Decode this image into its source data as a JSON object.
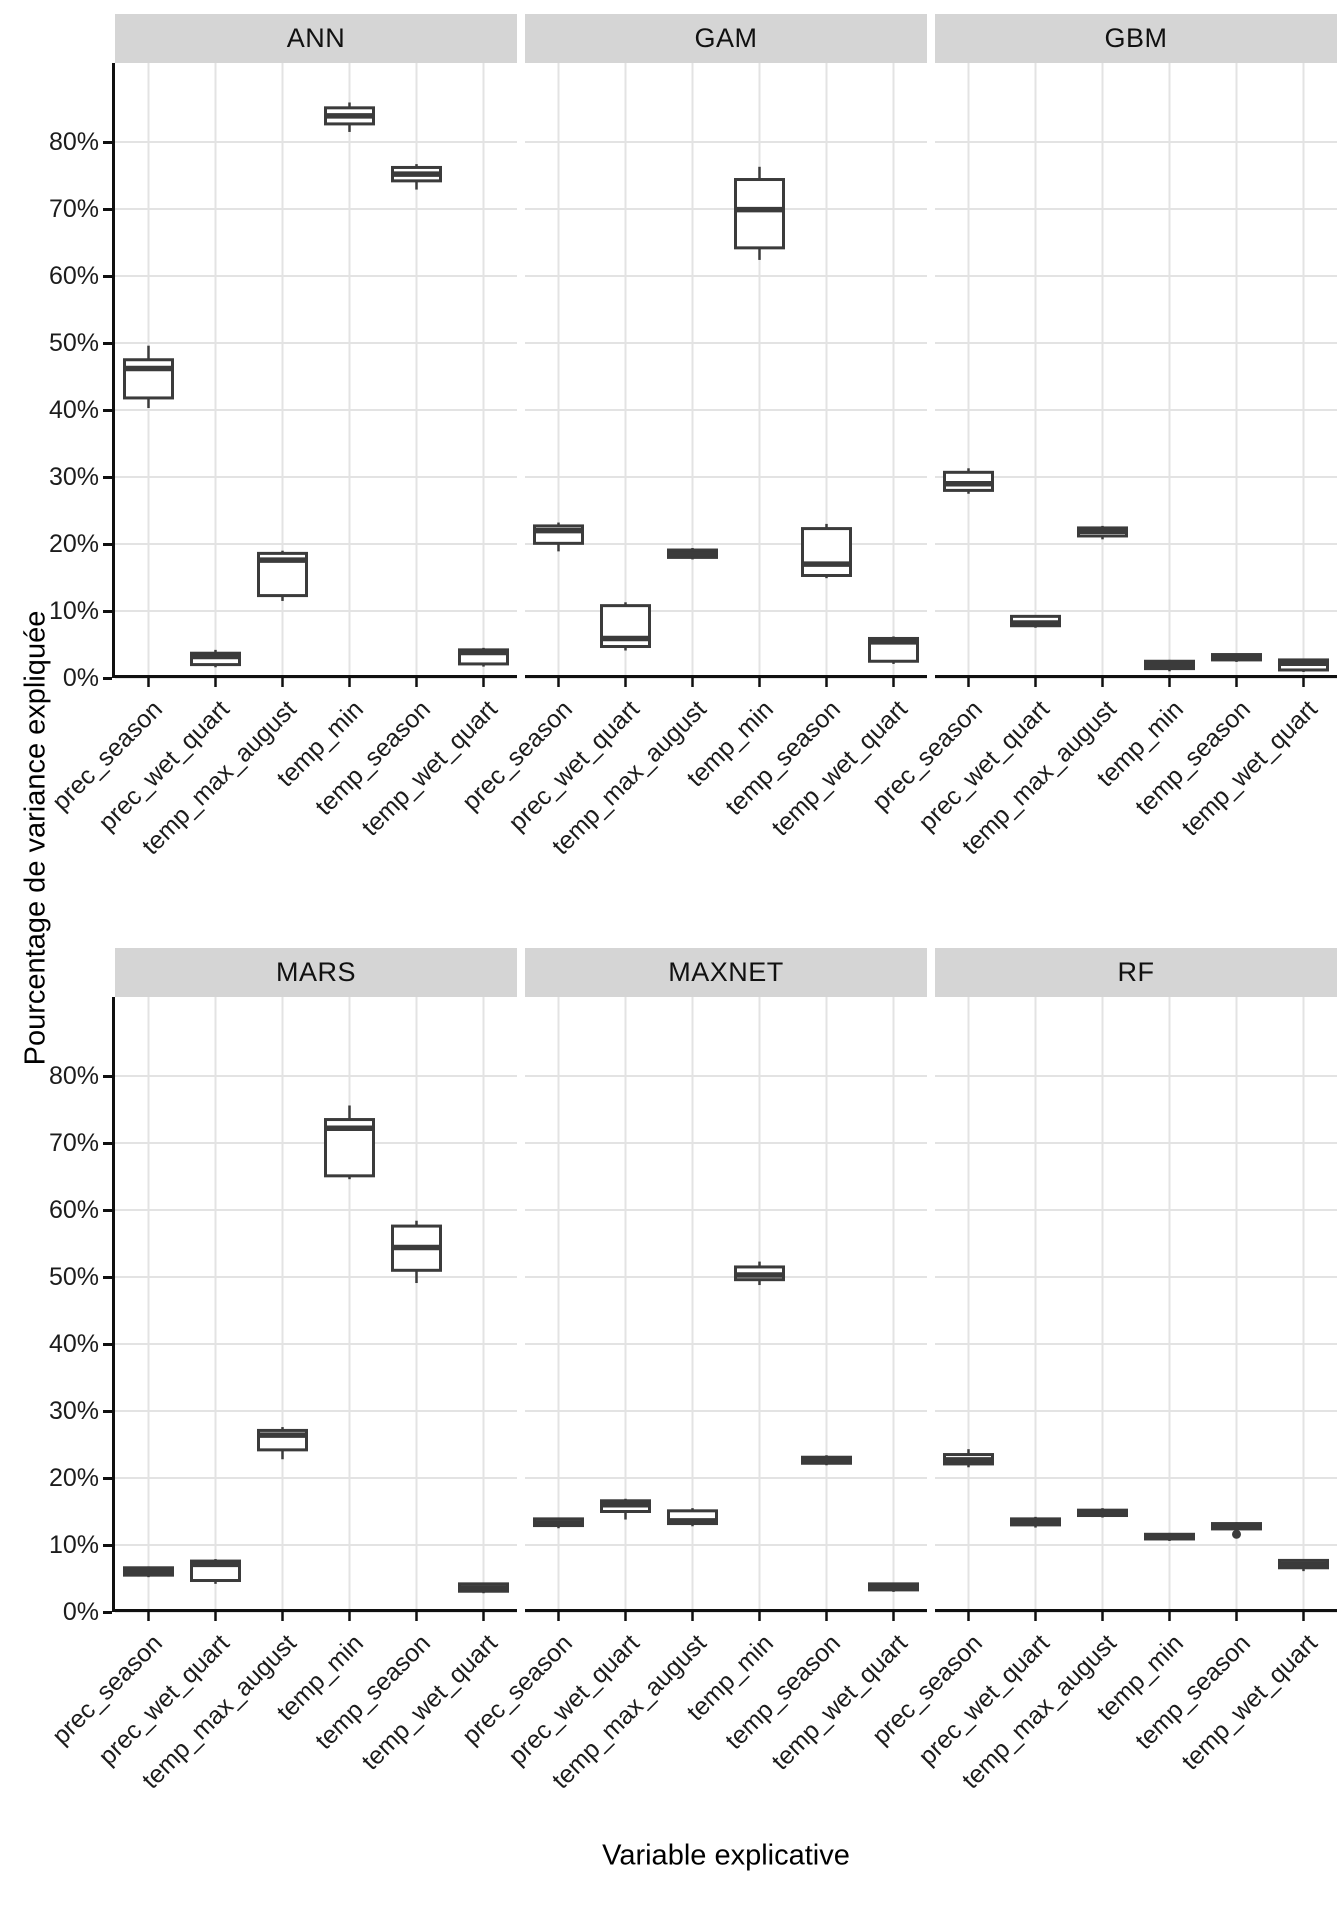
{
  "figure": {
    "y_axis_title": "Pourcentage de variance expliquée",
    "x_axis_title": "Variable explicative"
  },
  "colors": {
    "box_stroke": "#3b3b3b",
    "box_fill": "#ffffff",
    "gridline": "#e3e3e3",
    "strip_bg": "#d5d5d5",
    "axis_line": "#101010",
    "text": "#1c1c1c",
    "background": "#ffffff"
  },
  "chart_data": {
    "type": "boxplot",
    "facet_layout": [
      [
        "ANN",
        "GAM",
        "GBM"
      ],
      [
        "MARS",
        "MAXNET",
        "RF"
      ]
    ],
    "categories": [
      "prec_season",
      "prec_wet_quart",
      "temp_max_august",
      "temp_min",
      "temp_season",
      "temp_wet_quart"
    ],
    "y_ticks": [
      {
        "value": 0,
        "label": "0%"
      },
      {
        "value": 10,
        "label": "10%"
      },
      {
        "value": 20,
        "label": "20%"
      },
      {
        "value": 30,
        "label": "30%"
      },
      {
        "value": 40,
        "label": "40%"
      },
      {
        "value": 50,
        "label": "50%"
      },
      {
        "value": 60,
        "label": "60%"
      },
      {
        "value": 70,
        "label": "70%"
      },
      {
        "value": 80,
        "label": "80%"
      }
    ],
    "ylabel": "Pourcentage de variance expliquée",
    "xlabel": "Variable explicative",
    "ylim": [
      -4.5,
      91.8
    ],
    "grid": "major-only",
    "units": "percent",
    "facets": [
      {
        "label": "ANN",
        "boxes": [
          {
            "category": "prec_season",
            "lo": 40.3,
            "q1": 41.8,
            "med": 46.2,
            "q3": 47.5,
            "hi": 49.6,
            "out": []
          },
          {
            "category": "prec_wet_quart",
            "lo": 1.6,
            "q1": 2.0,
            "med": 3.2,
            "q3": 3.7,
            "hi": 4.2,
            "out": []
          },
          {
            "category": "temp_max_august",
            "lo": 11.5,
            "q1": 12.3,
            "med": 17.6,
            "q3": 18.6,
            "hi": 19.0,
            "out": []
          },
          {
            "category": "temp_min",
            "lo": 81.5,
            "q1": 82.7,
            "med": 83.9,
            "q3": 85.1,
            "hi": 85.9,
            "out": []
          },
          {
            "category": "temp_season",
            "lo": 72.9,
            "q1": 74.2,
            "med": 75.2,
            "q3": 76.2,
            "hi": 76.7,
            "out": []
          },
          {
            "category": "temp_wet_quart",
            "lo": 1.7,
            "q1": 2.1,
            "med": 3.8,
            "q3": 4.2,
            "hi": 4.5,
            "out": []
          }
        ]
      },
      {
        "label": "GAM",
        "boxes": [
          {
            "category": "prec_season",
            "lo": 18.9,
            "q1": 20.1,
            "med": 22.0,
            "q3": 22.7,
            "hi": 23.2,
            "out": []
          },
          {
            "category": "prec_wet_quart",
            "lo": 4.1,
            "q1": 4.7,
            "med": 5.9,
            "q3": 10.8,
            "hi": 11.3,
            "out": []
          },
          {
            "category": "temp_max_august",
            "lo": 17.7,
            "q1": 18.0,
            "med": 18.5,
            "q3": 19.1,
            "hi": 19.4,
            "out": []
          },
          {
            "category": "temp_min",
            "lo": 62.4,
            "q1": 64.2,
            "med": 69.9,
            "q3": 74.4,
            "hi": 76.3,
            "out": []
          },
          {
            "category": "temp_season",
            "lo": 14.9,
            "q1": 15.3,
            "med": 17.0,
            "q3": 22.3,
            "hi": 23.0,
            "out": []
          },
          {
            "category": "temp_wet_quart",
            "lo": 2.1,
            "q1": 2.5,
            "med": 5.4,
            "q3": 5.9,
            "hi": 6.2,
            "out": []
          }
        ]
      },
      {
        "label": "GBM",
        "boxes": [
          {
            "category": "prec_season",
            "lo": 27.5,
            "q1": 28.0,
            "med": 29.0,
            "q3": 30.7,
            "hi": 31.3,
            "out": []
          },
          {
            "category": "prec_wet_quart",
            "lo": 7.5,
            "q1": 7.8,
            "med": 8.2,
            "q3": 9.2,
            "hi": 9.4,
            "out": []
          },
          {
            "category": "temp_max_august",
            "lo": 20.7,
            "q1": 21.2,
            "med": 21.9,
            "q3": 22.4,
            "hi": 22.7,
            "out": []
          },
          {
            "category": "temp_min",
            "lo": 1.0,
            "q1": 1.4,
            "med": 1.9,
            "q3": 2.5,
            "hi": 2.7,
            "out": []
          },
          {
            "category": "temp_season",
            "lo": 2.4,
            "q1": 2.7,
            "med": 3.1,
            "q3": 3.5,
            "hi": 3.6,
            "out": []
          },
          {
            "category": "temp_wet_quart",
            "lo": 0.9,
            "q1": 1.2,
            "med": 2.2,
            "q3": 2.7,
            "hi": 2.9,
            "out": []
          }
        ]
      },
      {
        "label": "MARS",
        "boxes": [
          {
            "category": "prec_season",
            "lo": 5.2,
            "q1": 5.5,
            "med": 6.0,
            "q3": 6.6,
            "hi": 6.8,
            "out": []
          },
          {
            "category": "prec_wet_quart",
            "lo": 4.2,
            "q1": 4.7,
            "med": 7.1,
            "q3": 7.6,
            "hi": 7.9,
            "out": []
          },
          {
            "category": "temp_max_august",
            "lo": 22.8,
            "q1": 24.2,
            "med": 26.4,
            "q3": 27.1,
            "hi": 27.6,
            "out": []
          },
          {
            "category": "temp_min",
            "lo": 64.6,
            "q1": 65.1,
            "med": 72.2,
            "q3": 73.5,
            "hi": 75.6,
            "out": []
          },
          {
            "category": "temp_season",
            "lo": 49.1,
            "q1": 51.0,
            "med": 54.4,
            "q3": 57.6,
            "hi": 58.4,
            "out": []
          },
          {
            "category": "temp_wet_quart",
            "lo": 2.8,
            "q1": 3.1,
            "med": 3.6,
            "q3": 4.2,
            "hi": 4.4,
            "out": []
          }
        ]
      },
      {
        "label": "MAXNET",
        "boxes": [
          {
            "category": "prec_season",
            "lo": 12.5,
            "q1": 12.9,
            "med": 13.3,
            "q3": 13.9,
            "hi": 14.1,
            "out": []
          },
          {
            "category": "prec_wet_quart",
            "lo": 13.8,
            "q1": 15.0,
            "med": 16.0,
            "q3": 16.6,
            "hi": 16.9,
            "out": []
          },
          {
            "category": "temp_max_august",
            "lo": 12.8,
            "q1": 13.2,
            "med": 13.6,
            "q3": 15.1,
            "hi": 15.5,
            "out": []
          },
          {
            "category": "temp_min",
            "lo": 48.8,
            "q1": 49.6,
            "med": 50.3,
            "q3": 51.5,
            "hi": 52.3,
            "out": []
          },
          {
            "category": "temp_season",
            "lo": 21.9,
            "q1": 22.2,
            "med": 22.6,
            "q3": 23.1,
            "hi": 23.4,
            "out": []
          },
          {
            "category": "temp_wet_quart",
            "lo": 3.0,
            "q1": 3.3,
            "med": 3.7,
            "q3": 4.2,
            "hi": 4.4,
            "out": []
          }
        ]
      },
      {
        "label": "RF",
        "boxes": [
          {
            "category": "prec_season",
            "lo": 21.6,
            "q1": 22.1,
            "med": 22.7,
            "q3": 23.5,
            "hi": 24.3,
            "out": []
          },
          {
            "category": "prec_wet_quart",
            "lo": 12.6,
            "q1": 13.0,
            "med": 13.4,
            "q3": 13.9,
            "hi": 14.2,
            "out": []
          },
          {
            "category": "temp_max_august",
            "lo": 14.1,
            "q1": 14.4,
            "med": 14.8,
            "q3": 15.2,
            "hi": 15.5,
            "out": []
          },
          {
            "category": "temp_min",
            "lo": 10.6,
            "q1": 10.9,
            "med": 11.2,
            "q3": 11.6,
            "hi": 11.8,
            "out": []
          },
          {
            "category": "temp_season",
            "lo": 12.0,
            "q1": 12.4,
            "med": 12.8,
            "q3": 13.2,
            "hi": 13.4,
            "out": [
              11.6
            ]
          },
          {
            "category": "temp_wet_quart",
            "lo": 6.1,
            "q1": 6.6,
            "med": 7.1,
            "q3": 7.7,
            "hi": 7.9,
            "out": []
          }
        ]
      }
    ]
  }
}
